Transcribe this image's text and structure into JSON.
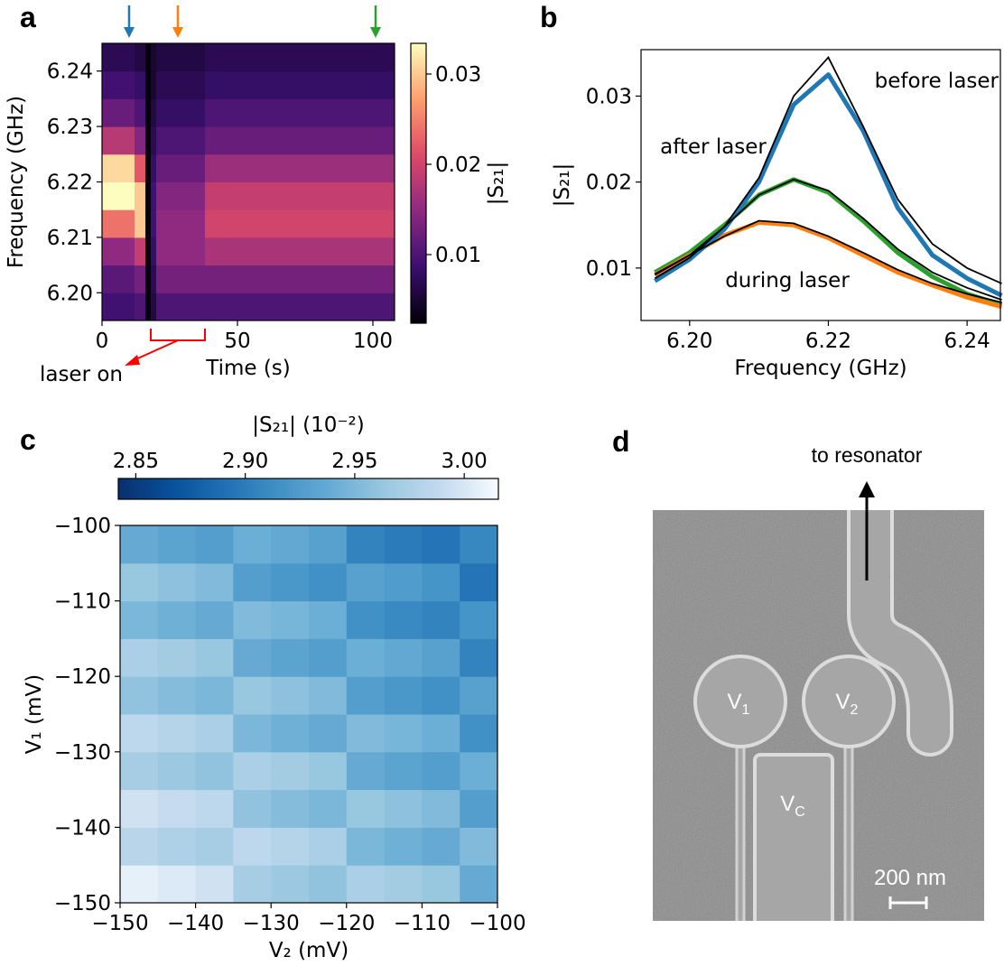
{
  "chart_data": [
    {
      "type": "heatmap",
      "label": "a",
      "xlabel": "Time (s)",
      "ylabel": "Frequency (GHz)",
      "x_edges": [
        0,
        4,
        8,
        12,
        16,
        18,
        20,
        28,
        38,
        48,
        60,
        72,
        84,
        96,
        108
      ],
      "y_edges": [
        6.195,
        6.2,
        6.205,
        6.21,
        6.215,
        6.22,
        6.225,
        6.23,
        6.235,
        6.24,
        6.245
      ],
      "values": [
        [
          0.009,
          0.009,
          0.009,
          0.01,
          0.003,
          0.006,
          0.01,
          0.01,
          0.01,
          0.01,
          0.01,
          0.01,
          0.01,
          0.01
        ],
        [
          0.011,
          0.011,
          0.011,
          0.013,
          0.003,
          0.007,
          0.013,
          0.013,
          0.013,
          0.013,
          0.013,
          0.013,
          0.013,
          0.013
        ],
        [
          0.015,
          0.015,
          0.015,
          0.019,
          0.003,
          0.008,
          0.015,
          0.015,
          0.017,
          0.017,
          0.017,
          0.017,
          0.017,
          0.017
        ],
        [
          0.024,
          0.024,
          0.024,
          0.03,
          0.003,
          0.009,
          0.015,
          0.015,
          0.02,
          0.02,
          0.02,
          0.02,
          0.02,
          0.02
        ],
        [
          0.034,
          0.034,
          0.034,
          0.03,
          0.003,
          0.009,
          0.014,
          0.014,
          0.019,
          0.019,
          0.019,
          0.019,
          0.019,
          0.019
        ],
        [
          0.031,
          0.031,
          0.031,
          0.022,
          0.003,
          0.008,
          0.012,
          0.012,
          0.016,
          0.016,
          0.016,
          0.016,
          0.016,
          0.016
        ],
        [
          0.018,
          0.018,
          0.018,
          0.014,
          0.003,
          0.007,
          0.01,
          0.01,
          0.012,
          0.012,
          0.012,
          0.012,
          0.012,
          0.012
        ],
        [
          0.012,
          0.012,
          0.012,
          0.01,
          0.003,
          0.006,
          0.008,
          0.008,
          0.01,
          0.01,
          0.01,
          0.01,
          0.01,
          0.01
        ],
        [
          0.009,
          0.009,
          0.009,
          0.008,
          0.003,
          0.005,
          0.007,
          0.007,
          0.008,
          0.008,
          0.008,
          0.008,
          0.008,
          0.008
        ],
        [
          0.007,
          0.007,
          0.007,
          0.006,
          0.003,
          0.005,
          0.006,
          0.006,
          0.007,
          0.007,
          0.007,
          0.007,
          0.007,
          0.007
        ]
      ],
      "cmap": "magma",
      "xlim": [
        0,
        108
      ],
      "xticks": [
        0,
        50,
        100
      ],
      "ylim": [
        6.195,
        6.245
      ],
      "yticks": [
        {
          "value": 6.2,
          "label": "6.20"
        },
        6.21,
        6.22,
        6.23,
        6.24
      ],
      "colorbar": {
        "orientation": "vertical",
        "label": "|S₂₁|",
        "lim": [
          0.0024,
          0.0334
        ],
        "ticks": [
          0.01,
          0.02,
          0.03
        ]
      },
      "arrows": [
        {
          "x": 10,
          "color": "#1f77b4"
        },
        {
          "x": 28,
          "color": "#ff7f0e"
        },
        {
          "x": 101,
          "color": "#2ca02c"
        }
      ],
      "annotation": {
        "text": "laser on",
        "color": "#ff0000",
        "x_range": [
          18,
          38
        ]
      }
    },
    {
      "type": "line",
      "label": "b",
      "xlabel": "Frequency (GHz)",
      "ylabel": "|S₂₁|",
      "x": [
        6.195,
        6.2,
        6.205,
        6.21,
        6.215,
        6.22,
        6.225,
        6.23,
        6.235,
        6.24,
        6.245
      ],
      "series": [
        {
          "name": "after laser",
          "color": "#2ca02c",
          "values": [
            0.0095,
            0.0118,
            0.015,
            0.0185,
            0.0203,
            0.0188,
            0.0155,
            0.0118,
            0.009,
            0.007,
            0.0057
          ],
          "fit": [
            0.0092,
            0.0115,
            0.0148,
            0.0185,
            0.0203,
            0.019,
            0.0158,
            0.0122,
            0.0095,
            0.0077,
            0.0063
          ]
        },
        {
          "name": "during laser",
          "color": "#ff7f0e",
          "values": [
            0.0092,
            0.0115,
            0.0138,
            0.0153,
            0.015,
            0.0135,
            0.0115,
            0.0095,
            0.008,
            0.0066,
            0.0055
          ],
          "fit": [
            0.0093,
            0.0115,
            0.0137,
            0.0155,
            0.0152,
            0.0137,
            0.0118,
            0.0098,
            0.0082,
            0.007,
            0.006
          ]
        },
        {
          "name": "before laser",
          "color": "#1f77b4",
          "values": [
            0.0085,
            0.011,
            0.0145,
            0.02,
            0.029,
            0.0325,
            0.026,
            0.017,
            0.0115,
            0.0088,
            0.0068
          ],
          "fit": [
            0.0088,
            0.0112,
            0.0148,
            0.0205,
            0.03,
            0.0345,
            0.0265,
            0.018,
            0.0128,
            0.01,
            0.0082
          ]
        }
      ],
      "fit_color": "#000000",
      "xlim": [
        6.193,
        6.2448
      ],
      "xticks": [
        {
          "value": 6.2,
          "label": "6.20"
        },
        6.22,
        6.24
      ],
      "ylim": [
        0.0039,
        0.0354
      ],
      "yticks": [
        0.01,
        0.02,
        0.03
      ]
    },
    {
      "type": "heatmap",
      "label": "c",
      "xlabel": "V₂ (mV)",
      "ylabel": "V₁ (mV)",
      "x_edges": [
        -150,
        -145,
        -140,
        -135,
        -130,
        -125,
        -120,
        -115,
        -110,
        -105,
        -100
      ],
      "y_edges": [
        -150,
        -145,
        -140,
        -135,
        -130,
        -125,
        -120,
        -115,
        -110,
        -105,
        -100
      ],
      "values": [
        [
          3.007,
          3.002,
          2.996,
          2.971,
          2.965,
          2.96,
          2.974,
          2.969,
          2.963,
          2.938
        ],
        [
          2.982,
          2.976,
          2.971,
          2.985,
          2.98,
          2.974,
          2.949,
          2.943,
          2.938,
          2.952
        ],
        [
          2.996,
          2.991,
          2.985,
          2.96,
          2.954,
          2.949,
          2.963,
          2.958,
          2.952,
          2.927
        ],
        [
          2.971,
          2.965,
          2.96,
          2.974,
          2.969,
          2.963,
          2.938,
          2.932,
          2.927,
          2.941
        ],
        [
          2.985,
          2.98,
          2.974,
          2.949,
          2.943,
          2.938,
          2.952,
          2.947,
          2.941,
          2.916
        ],
        [
          2.96,
          2.954,
          2.949,
          2.963,
          2.958,
          2.952,
          2.927,
          2.921,
          2.916,
          2.93
        ],
        [
          2.974,
          2.969,
          2.963,
          2.938,
          2.932,
          2.927,
          2.941,
          2.936,
          2.93,
          2.905
        ],
        [
          2.949,
          2.943,
          2.938,
          2.952,
          2.947,
          2.941,
          2.916,
          2.91,
          2.905,
          2.919
        ],
        [
          2.963,
          2.958,
          2.952,
          2.927,
          2.921,
          2.916,
          2.93,
          2.925,
          2.919,
          2.894
        ],
        [
          2.938,
          2.932,
          2.927,
          2.941,
          2.936,
          2.93,
          2.905,
          2.899,
          2.894,
          2.908
        ]
      ],
      "cmap": "Blues",
      "xlim": [
        -150,
        -100
      ],
      "xticks": [
        {
          "value": -150,
          "label": "−150"
        },
        {
          "value": -140,
          "label": "−140"
        },
        {
          "value": -130,
          "label": "−130"
        },
        {
          "value": -120,
          "label": "−120"
        },
        {
          "value": -110,
          "label": "−110"
        },
        {
          "value": -100,
          "label": "−100"
        }
      ],
      "ylim": [
        -150,
        -100
      ],
      "yticks": [
        {
          "value": -150,
          "label": "−150"
        },
        {
          "value": -140,
          "label": "−140"
        },
        {
          "value": -130,
          "label": "−130"
        },
        {
          "value": -120,
          "label": "−120"
        },
        {
          "value": -110,
          "label": "−110"
        },
        {
          "value": -100,
          "label": "−100"
        }
      ],
      "colorbar": {
        "orientation": "horizontal",
        "label": "|S₂₁| (10⁻²)",
        "lim": [
          2.842,
          3.0156
        ],
        "ticks": [
          2.85,
          {
            "value": 2.9,
            "label": "2.90"
          },
          2.95,
          {
            "value": 3,
            "label": "3.00"
          }
        ]
      }
    }
  ],
  "image": {
    "label": "d",
    "caption": "to resonator",
    "gates": [
      {
        "symbol": "V",
        "subscript": "1"
      },
      {
        "symbol": "V",
        "subscript": "2"
      },
      {
        "symbol": "V",
        "subscript": "C"
      }
    ],
    "scale_bar": "200 nm"
  }
}
